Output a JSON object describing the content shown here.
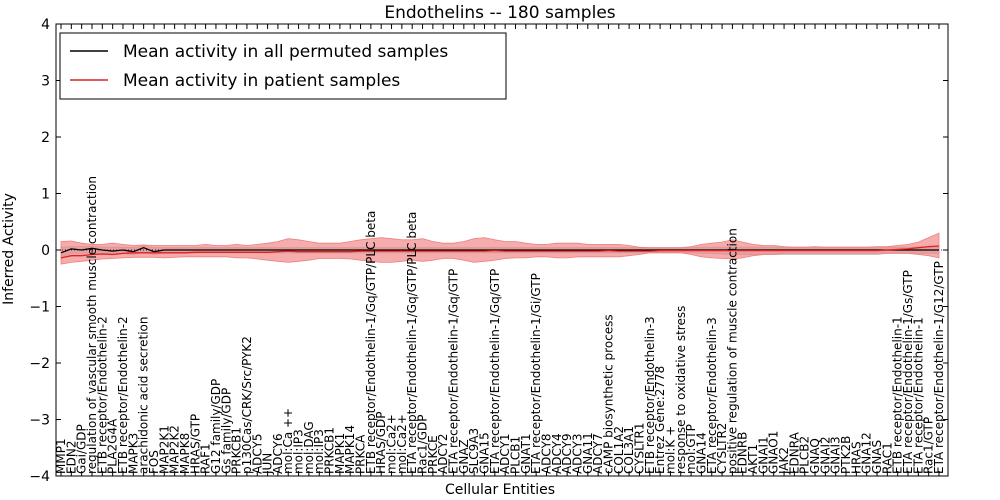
{
  "chart_data": {
    "type": "line",
    "title": "Endothelins -- 180 samples",
    "xlabel": "Cellular Entities",
    "ylabel": "Inferred Activity",
    "ylim": [
      -4,
      4
    ],
    "yticks": [
      -4,
      -3,
      -2,
      -1,
      0,
      1,
      2,
      3,
      4
    ],
    "ytick_labels": [
      "−4",
      "−3",
      "−2",
      "−1",
      "0",
      "1",
      "2",
      "3",
      "4"
    ],
    "grid": false,
    "legend_position": "top-left",
    "categories": [
      "MMP1",
      "EDN2",
      "Gai/GDP",
      "regulation of vascular smooth muscle contraction",
      "ETB receptor/Endothelin-2",
      "PLA2G4A",
      "ETB receptor/Endothelin-2",
      "MAPK3",
      "arachidonic acid secretion",
      "FOS",
      "MAP2K1",
      "MAP2K2",
      "MAPK8",
      "HRAS/GTP",
      "RAF1",
      "G12 family/GDP",
      "Gs family/GDP",
      "PRKCB1",
      "p130Cas/CRK/Src/PYK2",
      "ADCY5",
      "JUN",
      "ADCY6",
      "mol:Ca ++",
      "mol:IP3",
      "mol:DAG",
      "mol:IP3",
      "PRKCB1",
      "MAPK1",
      "MAPK14",
      "PRKCA",
      "ETB receptor/Endothelin-1/Gq/GTP/PLC beta",
      "HRAS/GDP",
      "mol:Ca2+",
      "mol:Ca2+",
      "ETA receptor/Endothelin-1/Gq/GTP/PLC beta",
      "Rac1/GDP",
      "PRKCE",
      "ADCY2",
      "ETA receptor/Endothelin-1/Gq/GTP",
      "GNAZ",
      "SLC9A3",
      "GNA15",
      "ETA receptor/Endothelin-1/Gq/GTP",
      "ADCY1",
      "PLCB1",
      "GNAT1",
      "ETA receptor/Endothelin-1/Gi/GTP",
      "ADCY8",
      "ADCY4",
      "ADCY9",
      "ADCY3",
      "GNA11",
      "ADCY7",
      "cAMP biosynthetic process",
      "COL1A2",
      "COL3A1",
      "CYSLTR1",
      "ETB receptor/Endothelin-3",
      "Entrez Gene:2778",
      "mol:K +",
      "response to oxidative stress",
      "mol:GTP",
      "GNA14",
      "ETA receptor/Endothelin-3",
      "CYSLTR2",
      "positive regulation of muscle contraction",
      "EDNRB",
      "AKT1",
      "GNAI1",
      "GNAO1",
      "JAK2",
      "EDNRA",
      "PLCB2",
      "GNAQ",
      "GNAI2",
      "GNAI3",
      "PTK2B",
      "HRAS",
      "GNA12",
      "GNAS",
      "RAC1",
      "ETB receptor/Endothelin-1",
      "ETA receptor/Endothelin-1/Gs/GTP",
      "ETA receptor/Endothelin-1",
      "Rac1/GTP",
      "ETA receptor/Endothelin-1/G12/GTP"
    ],
    "series": [
      {
        "name": "Mean activity in all permuted samples",
        "color": "#000000",
        "band_color": "#bbbbbb",
        "values": [
          -0.05,
          0.02,
          0.0,
          0.03,
          0.0,
          -0.02,
          0.0,
          -0.03,
          0.04,
          -0.03,
          0,
          0,
          0,
          0,
          0,
          0,
          0,
          0,
          0,
          0,
          0,
          0,
          0,
          0,
          0,
          0,
          0,
          0,
          0,
          0,
          0,
          0,
          0,
          0,
          0,
          0,
          0,
          0,
          0,
          0,
          0,
          0,
          0,
          0,
          0,
          0,
          0,
          0,
          0,
          0,
          0,
          0,
          0,
          0,
          0,
          0,
          0,
          0,
          0,
          0,
          0,
          0,
          0,
          0,
          0,
          0,
          0,
          0,
          0,
          0,
          0,
          0,
          0,
          0,
          0,
          0,
          0,
          0,
          0,
          0,
          0,
          0,
          0,
          0,
          0,
          0
        ],
        "upper": [
          0.05,
          0.06,
          0.06,
          0.07,
          0.05,
          0.05,
          0.05,
          0.04,
          0.07,
          0.04,
          0.04,
          0.04,
          0.04,
          0.04,
          0.04,
          0.04,
          0.04,
          0.04,
          0.04,
          0.04,
          0.04,
          0.04,
          0.04,
          0.04,
          0.04,
          0.04,
          0.04,
          0.04,
          0.04,
          0.04,
          0.04,
          0.04,
          0.04,
          0.04,
          0.04,
          0.04,
          0.04,
          0.04,
          0.04,
          0.04,
          0.04,
          0.04,
          0.04,
          0.04,
          0.04,
          0.04,
          0.04,
          0.04,
          0.04,
          0.04,
          0.04,
          0.04,
          0.04,
          0.04,
          0.04,
          0.04,
          0.04,
          0.04,
          0.04,
          0.04,
          0.04,
          0.04,
          0.05,
          0.05,
          0.05,
          0.05,
          0.05,
          0.05,
          0.05,
          0.05,
          0.05,
          0.05,
          0.05,
          0.05,
          0.05,
          0.05,
          0.05,
          0.05,
          0.05,
          0.05,
          0.05,
          0.05,
          0.05,
          0.05,
          0.05,
          0.05
        ],
        "lower": [
          -0.12,
          -0.06,
          -0.06,
          -0.05,
          -0.06,
          -0.07,
          -0.06,
          -0.08,
          -0.04,
          -0.08,
          -0.05,
          -0.05,
          -0.05,
          -0.05,
          -0.05,
          -0.05,
          -0.05,
          -0.05,
          -0.05,
          -0.05,
          -0.05,
          -0.05,
          -0.05,
          -0.05,
          -0.05,
          -0.05,
          -0.05,
          -0.05,
          -0.05,
          -0.05,
          -0.05,
          -0.05,
          -0.05,
          -0.05,
          -0.05,
          -0.05,
          -0.05,
          -0.05,
          -0.05,
          -0.05,
          -0.05,
          -0.05,
          -0.05,
          -0.05,
          -0.05,
          -0.05,
          -0.05,
          -0.05,
          -0.05,
          -0.05,
          -0.05,
          -0.05,
          -0.05,
          -0.05,
          -0.05,
          -0.05,
          -0.05,
          -0.05,
          -0.05,
          -0.05,
          -0.05,
          -0.05,
          -0.06,
          -0.06,
          -0.07,
          -0.08,
          -0.08,
          -0.08,
          -0.08,
          -0.08,
          -0.08,
          -0.08,
          -0.08,
          -0.08,
          -0.08,
          -0.08,
          -0.08,
          -0.08,
          -0.08,
          -0.08,
          -0.06,
          -0.06,
          -0.06,
          -0.06,
          -0.06,
          -0.06
        ]
      },
      {
        "name": "Mean activity in patient samples",
        "color": "#dd2222",
        "band_color": "#f08080",
        "values": [
          -0.14,
          -0.1,
          -0.1,
          -0.08,
          -0.07,
          -0.08,
          -0.06,
          -0.05,
          -0.05,
          -0.05,
          -0.05,
          -0.05,
          -0.05,
          -0.04,
          -0.04,
          -0.04,
          -0.04,
          -0.04,
          -0.04,
          -0.04,
          -0.04,
          -0.03,
          -0.02,
          -0.03,
          -0.03,
          -0.03,
          -0.03,
          -0.03,
          -0.03,
          -0.02,
          -0.02,
          -0.02,
          -0.02,
          -0.02,
          -0.02,
          -0.02,
          -0.02,
          -0.02,
          -0.02,
          -0.02,
          -0.02,
          -0.02,
          -0.01,
          -0.02,
          -0.02,
          -0.02,
          -0.02,
          -0.02,
          -0.02,
          -0.02,
          -0.02,
          -0.02,
          -0.02,
          -0.01,
          -0.02,
          -0.02,
          -0.02,
          -0.02,
          -0.01,
          -0.01,
          -0.01,
          -0.01,
          -0.01,
          -0.01,
          -0.01,
          -0.01,
          -0.01,
          -0.01,
          -0.01,
          -0.01,
          -0.01,
          -0.01,
          -0.01,
          -0.01,
          -0.01,
          -0.01,
          -0.01,
          -0.01,
          -0.01,
          -0.01,
          0.0,
          0.01,
          0.02,
          0.04,
          0.06,
          0.07
        ],
        "upper": [
          0.15,
          0.16,
          0.12,
          0.1,
          0.1,
          0.12,
          0.1,
          0.08,
          0.09,
          0.08,
          0.08,
          0.08,
          0.08,
          0.08,
          0.1,
          0.08,
          0.08,
          0.1,
          0.08,
          0.1,
          0.12,
          0.15,
          0.2,
          0.18,
          0.15,
          0.12,
          0.12,
          0.12,
          0.15,
          0.18,
          0.2,
          0.22,
          0.2,
          0.18,
          0.18,
          0.2,
          0.15,
          0.12,
          0.12,
          0.15,
          0.2,
          0.22,
          0.18,
          0.15,
          0.15,
          0.12,
          0.1,
          0.1,
          0.12,
          0.12,
          0.12,
          0.1,
          0.1,
          0.1,
          0.1,
          0.08,
          0.05,
          0.04,
          0.04,
          0.04,
          0.04,
          0.06,
          0.1,
          0.12,
          0.14,
          0.18,
          0.14,
          0.1,
          0.08,
          0.08,
          0.06,
          0.05,
          0.05,
          0.06,
          0.05,
          0.05,
          0.05,
          0.05,
          0.05,
          0.06,
          0.06,
          0.08,
          0.1,
          0.14,
          0.22,
          0.3
        ],
        "lower": [
          -0.25,
          -0.22,
          -0.2,
          -0.18,
          -0.16,
          -0.15,
          -0.14,
          -0.13,
          -0.13,
          -0.13,
          -0.14,
          -0.13,
          -0.12,
          -0.12,
          -0.12,
          -0.12,
          -0.12,
          -0.14,
          -0.14,
          -0.16,
          -0.18,
          -0.2,
          -0.22,
          -0.2,
          -0.18,
          -0.15,
          -0.15,
          -0.15,
          -0.16,
          -0.18,
          -0.2,
          -0.22,
          -0.22,
          -0.2,
          -0.18,
          -0.2,
          -0.18,
          -0.15,
          -0.15,
          -0.18,
          -0.22,
          -0.2,
          -0.18,
          -0.15,
          -0.14,
          -0.14,
          -0.12,
          -0.12,
          -0.14,
          -0.14,
          -0.12,
          -0.12,
          -0.12,
          -0.12,
          -0.12,
          -0.1,
          -0.08,
          -0.05,
          -0.05,
          -0.05,
          -0.05,
          -0.08,
          -0.12,
          -0.14,
          -0.15,
          -0.16,
          -0.14,
          -0.1,
          -0.08,
          -0.08,
          -0.06,
          -0.06,
          -0.06,
          -0.06,
          -0.06,
          -0.06,
          -0.06,
          -0.06,
          -0.06,
          -0.06,
          -0.06,
          -0.06,
          -0.06,
          -0.08,
          -0.1,
          -0.14
        ]
      }
    ]
  }
}
